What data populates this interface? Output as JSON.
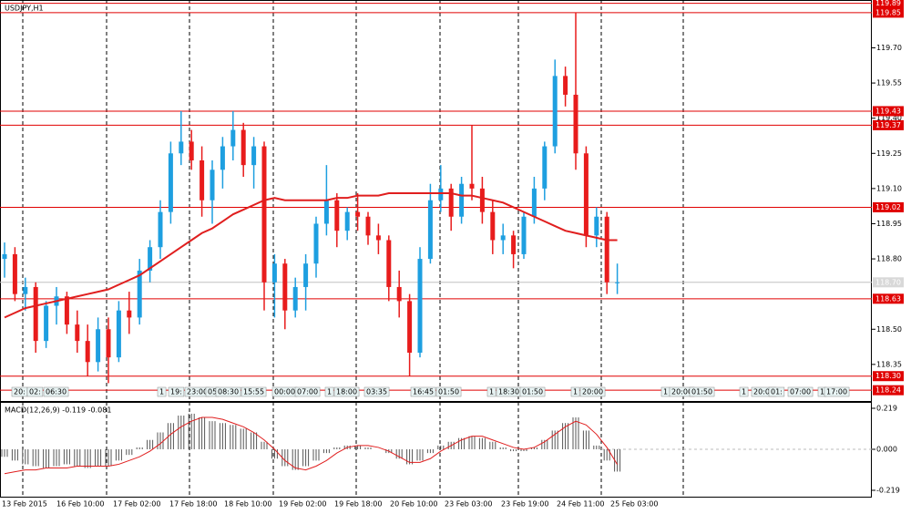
{
  "chart_data": [
    {
      "type": "candlestick",
      "title": "USDJPY,H1",
      "open": [
        118.8,
        118.82,
        118.65,
        118.68,
        118.45,
        118.6,
        118.64,
        118.52,
        118.45,
        118.36,
        118.5,
        118.38,
        118.58,
        118.55,
        118.75,
        118.85,
        119.0,
        119.25,
        119.3,
        119.22,
        119.05,
        119.18,
        119.28,
        119.35,
        119.2,
        119.28,
        118.7,
        118.78,
        118.58,
        118.68,
        118.78,
        118.95,
        119.05,
        118.92,
        119.0,
        118.98,
        118.9,
        118.88,
        118.68,
        118.62,
        118.4,
        118.8,
        119.05,
        119.1,
        118.98,
        119.12,
        119.1,
        119.0,
        118.88,
        118.9,
        118.82,
        118.98,
        119.1,
        119.28,
        119.58,
        119.5,
        119.25,
        118.9,
        118.98,
        118.7
      ],
      "high": [
        118.87,
        118.85,
        118.72,
        118.7,
        118.62,
        118.68,
        118.66,
        118.58,
        118.52,
        118.55,
        118.55,
        118.62,
        118.66,
        118.8,
        118.88,
        119.05,
        119.3,
        119.43,
        119.35,
        119.28,
        119.22,
        119.32,
        119.43,
        119.38,
        119.32,
        119.3,
        118.82,
        118.8,
        118.72,
        118.82,
        118.98,
        119.2,
        119.08,
        119.02,
        119.08,
        119.0,
        118.95,
        118.9,
        118.75,
        118.65,
        118.85,
        119.12,
        119.2,
        119.12,
        119.15,
        119.37,
        119.15,
        119.05,
        118.95,
        118.92,
        119.0,
        119.15,
        119.3,
        119.65,
        119.62,
        119.85,
        119.28,
        119.02,
        119.0,
        118.78
      ],
      "low": [
        118.72,
        118.62,
        118.58,
        118.4,
        118.42,
        118.52,
        118.48,
        118.4,
        118.3,
        118.32,
        118.27,
        118.36,
        118.48,
        118.52,
        118.7,
        118.8,
        118.95,
        119.2,
        119.18,
        118.98,
        118.95,
        119.1,
        119.22,
        119.15,
        119.1,
        118.58,
        118.55,
        118.5,
        118.55,
        118.58,
        118.72,
        118.9,
        118.85,
        118.88,
        118.92,
        118.86,
        118.82,
        118.62,
        118.55,
        118.3,
        118.38,
        118.78,
        119.0,
        118.92,
        118.95,
        119.05,
        118.95,
        118.82,
        118.82,
        118.76,
        118.8,
        118.95,
        119.05,
        119.25,
        119.45,
        119.18,
        118.85,
        118.85,
        118.65,
        118.65
      ],
      "close": [
        118.82,
        118.65,
        118.68,
        118.45,
        118.6,
        118.64,
        118.52,
        118.45,
        118.36,
        118.5,
        118.38,
        118.58,
        118.55,
        118.75,
        118.85,
        119.0,
        119.25,
        119.3,
        119.22,
        119.05,
        119.18,
        119.28,
        119.35,
        119.2,
        119.28,
        118.7,
        118.78,
        118.58,
        118.68,
        118.78,
        118.95,
        119.05,
        118.92,
        119.0,
        118.98,
        118.9,
        118.88,
        118.68,
        118.62,
        118.4,
        118.8,
        119.05,
        119.1,
        118.98,
        119.12,
        119.1,
        119.0,
        118.88,
        118.9,
        118.82,
        118.98,
        119.1,
        119.28,
        119.58,
        119.5,
        119.25,
        118.9,
        118.98,
        118.7,
        118.7
      ],
      "up_color": "#1e9fe0",
      "down_color": "#e81c1c",
      "moving_average": {
        "color": "#e01e1e",
        "values": [
          118.55,
          118.57,
          118.59,
          118.6,
          118.61,
          118.62,
          118.63,
          118.64,
          118.65,
          118.66,
          118.67,
          118.69,
          118.71,
          118.73,
          118.76,
          118.79,
          118.82,
          118.85,
          118.88,
          118.91,
          118.93,
          118.96,
          118.99,
          119.01,
          119.03,
          119.05,
          119.06,
          119.05,
          119.05,
          119.05,
          119.05,
          119.05,
          119.06,
          119.06,
          119.07,
          119.07,
          119.07,
          119.08,
          119.08,
          119.08,
          119.08,
          119.08,
          119.08,
          119.08,
          119.07,
          119.07,
          119.06,
          119.05,
          119.04,
          119.02,
          119.0,
          118.98,
          118.96,
          118.94,
          118.92,
          118.91,
          118.9,
          118.89,
          118.88,
          118.88
        ]
      },
      "levels": [
        119.89,
        119.85,
        119.43,
        119.37,
        119.02,
        118.63,
        {
          "value": 118.3,
          "label": "118.30"
        },
        118.24
      ],
      "level_color": "#e00000",
      "current_price": {
        "value": 118.7,
        "label": "118.70"
      },
      "ylim": [
        118.194,
        119.904
      ],
      "yticks": [
        {
          "value": 119.7,
          "label": "119.70"
        },
        119.55,
        {
          "value": 119.4,
          "label": "119.40"
        },
        119.25,
        {
          "value": 119.1,
          "label": "119.10"
        },
        118.95,
        {
          "value": 118.8,
          "label": "118.80"
        },
        {
          "value": 118.5,
          "label": "118.50"
        },
        118.35
      ],
      "time_labels": [
        "13 Feb 2015",
        "16 Feb 10:00",
        "17 Feb 02:00",
        "17 Feb 18:00",
        "18 Feb 10:00",
        "19 Feb 02:00",
        "19 Feb 18:00",
        "20 Feb 10:00",
        "23 Feb 03:00",
        "23 Feb 19:00",
        "24 Feb 11:00",
        "25 Feb 03:00"
      ],
      "events": [
        "20:",
        "02:",
        "06:30",
        "1",
        "19:",
        "23:00",
        "05",
        "08:30",
        "15:55",
        "00:00",
        "07:00",
        "1",
        "18:00",
        "03:35",
        "16:45",
        "01:50",
        "1",
        "18:30",
        "01:50",
        "1",
        "20:00",
        "1",
        "20:00",
        "01:50",
        "1",
        "20:00",
        "01:",
        "07:00",
        "1",
        "17:00"
      ]
    },
    {
      "type": "macd",
      "title": "MACD(12,26,9) -0.119 -0.081",
      "histogram": {
        "color": "#555555",
        "values": [
          -0.04,
          -0.06,
          -0.08,
          -0.09,
          -0.1,
          -0.09,
          -0.08,
          -0.09,
          -0.1,
          -0.09,
          -0.09,
          -0.06,
          -0.03,
          0.01,
          0.05,
          0.09,
          0.14,
          0.18,
          0.19,
          0.17,
          0.15,
          0.14,
          0.13,
          0.11,
          0.09,
          0.04,
          -0.05,
          -0.09,
          -0.11,
          -0.09,
          -0.06,
          -0.02,
          0.01,
          0.02,
          0.02,
          0.01,
          0.0,
          -0.02,
          -0.05,
          -0.08,
          -0.06,
          -0.02,
          0.02,
          0.04,
          0.06,
          0.07,
          0.06,
          0.04,
          0.01,
          -0.01,
          -0.01,
          0.01,
          0.05,
          0.1,
          0.14,
          0.17,
          0.1,
          0.02,
          -0.06,
          -0.119
        ]
      },
      "signal": {
        "color": "#e01e1e",
        "values": [
          -0.13,
          -0.12,
          -0.11,
          -0.11,
          -0.1,
          -0.1,
          -0.1,
          -0.09,
          -0.09,
          -0.09,
          -0.09,
          -0.08,
          -0.06,
          -0.04,
          -0.01,
          0.03,
          0.08,
          0.12,
          0.15,
          0.17,
          0.17,
          0.16,
          0.14,
          0.12,
          0.09,
          0.05,
          0.0,
          -0.06,
          -0.1,
          -0.11,
          -0.09,
          -0.06,
          -0.02,
          0.01,
          0.02,
          0.02,
          0.01,
          -0.01,
          -0.04,
          -0.07,
          -0.07,
          -0.05,
          -0.01,
          0.02,
          0.05,
          0.07,
          0.07,
          0.05,
          0.03,
          0.01,
          0.0,
          0.01,
          0.04,
          0.08,
          0.12,
          0.15,
          0.13,
          0.08,
          0.01,
          -0.081
        ]
      },
      "ylim": [
        -0.253,
        0.253
      ],
      "yticks": [
        0.219,
        {
          "value": 0,
          "label": "0.000"
        },
        -0.219
      ]
    }
  ]
}
